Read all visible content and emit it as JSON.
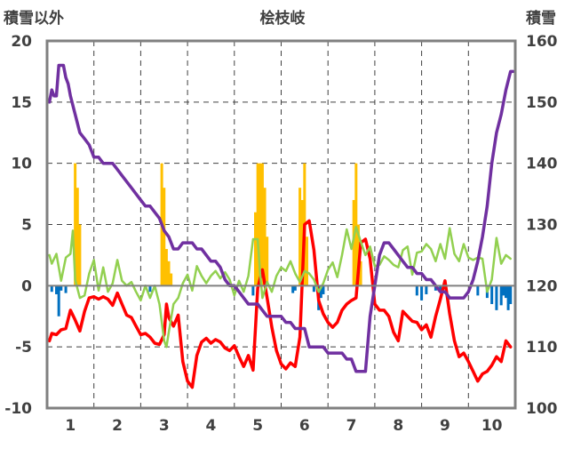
{
  "chart_data": {
    "type": "line",
    "title": "桧枝岐",
    "y_left_label": "積雪以外",
    "y_right_label": "積雪",
    "y_left_range": [
      -10,
      20
    ],
    "y_right_range": [
      100,
      160
    ],
    "y_left_ticks": [
      -10,
      -5,
      0,
      5,
      10,
      15,
      20
    ],
    "y_right_ticks": [
      100,
      110,
      120,
      130,
      140,
      150,
      160
    ],
    "x_range": [
      0.5,
      10.5
    ],
    "x_ticks": [
      1,
      2,
      3,
      4,
      5,
      6,
      7,
      8,
      9,
      10
    ],
    "grid": true,
    "colors": {
      "temperature": "#ff0000",
      "wind": "#92d050",
      "snow_depth": "#7030a0",
      "precip_positive": "#ffc000",
      "precip_negative": "#0070c0",
      "axes": "#808080",
      "grid": "#404040"
    },
    "series": [
      {
        "kind": "line",
        "axis": "left",
        "color_key": "temperature",
        "x": [
          0.55,
          0.6,
          0.7,
          0.8,
          0.9,
          1.0,
          1.1,
          1.2,
          1.3,
          1.4,
          1.5,
          1.6,
          1.7,
          1.8,
          1.9,
          2.0,
          2.1,
          2.2,
          2.3,
          2.4,
          2.5,
          2.6,
          2.7,
          2.8,
          2.9,
          3.0,
          3.05,
          3.1,
          3.2,
          3.3,
          3.4,
          3.5,
          3.6,
          3.7,
          3.8,
          3.9,
          4.0,
          4.1,
          4.2,
          4.3,
          4.4,
          4.5,
          4.6,
          4.7,
          4.8,
          4.9,
          5.0,
          5.1,
          5.2,
          5.3,
          5.4,
          5.5,
          5.6,
          5.7,
          5.8,
          5.9,
          6.0,
          6.1,
          6.2,
          6.3,
          6.4,
          6.5,
          6.6,
          6.7,
          6.8,
          6.9,
          7.0,
          7.1,
          7.2,
          7.3,
          7.4,
          7.5,
          7.6,
          7.7,
          7.8,
          7.9,
          8.0,
          8.1,
          8.2,
          8.3,
          8.4,
          8.5,
          8.6,
          8.7,
          8.8,
          8.9,
          9.0,
          9.1,
          9.2,
          9.3,
          9.4,
          9.5,
          9.6,
          9.7,
          9.8,
          9.9,
          10.0,
          10.1,
          10.2,
          10.3,
          10.4
        ],
        "y": [
          -4.5,
          -3.9,
          -4.0,
          -3.6,
          -3.5,
          -2.0,
          -2.8,
          -3.7,
          -2.1,
          -1.0,
          -0.9,
          -1.1,
          -0.9,
          -1.1,
          -1.6,
          -0.6,
          -1.5,
          -2.4,
          -2.6,
          -3.3,
          -4.0,
          -3.9,
          -4.2,
          -4.7,
          -4.8,
          -4.0,
          -1.5,
          -2.6,
          -3.3,
          -2.4,
          -6.2,
          -7.8,
          -8.3,
          -5.7,
          -4.6,
          -4.3,
          -4.7,
          -4.4,
          -4.6,
          -5.1,
          -5.3,
          -4.9,
          -5.8,
          -6.6,
          -5.7,
          -6.9,
          -0.2,
          1.3,
          -1.0,
          -3.4,
          -5.3,
          -6.4,
          -6.8,
          -6.3,
          -6.6,
          -4.2,
          5.0,
          5.3,
          2.9,
          -1.2,
          -2.3,
          -3.0,
          -3.4,
          -3.0,
          -2.0,
          -1.5,
          -1.2,
          -1.0,
          3.5,
          3.8,
          2.2,
          -1.5,
          -2.0,
          -2.0,
          -2.5,
          -3.8,
          -4.5,
          -2.1,
          -2.5,
          -2.9,
          -3.0,
          -3.6,
          -3.2,
          -4.2,
          -2.5,
          -1.1,
          0.4,
          -2.3,
          -4.5,
          -5.8,
          -5.5,
          -6.2,
          -7.0,
          -7.8,
          -7.2,
          -7.0,
          -6.5,
          -5.8,
          -6.2,
          -4.5,
          -5.0
        ]
      },
      {
        "kind": "line",
        "axis": "left",
        "color_key": "wind",
        "x": [
          0.55,
          0.6,
          0.7,
          0.8,
          0.9,
          1.0,
          1.05,
          1.1,
          1.2,
          1.3,
          1.4,
          1.5,
          1.6,
          1.7,
          1.8,
          1.9,
          2.0,
          2.1,
          2.2,
          2.3,
          2.4,
          2.5,
          2.6,
          2.7,
          2.8,
          2.9,
          3.0,
          3.05,
          3.1,
          3.2,
          3.3,
          3.4,
          3.5,
          3.6,
          3.7,
          3.8,
          3.9,
          4.0,
          4.1,
          4.2,
          4.3,
          4.4,
          4.5,
          4.6,
          4.7,
          4.8,
          4.9,
          5.0,
          5.05,
          5.1,
          5.2,
          5.3,
          5.4,
          5.5,
          5.6,
          5.7,
          5.8,
          5.9,
          6.0,
          6.1,
          6.2,
          6.3,
          6.4,
          6.5,
          6.6,
          6.7,
          6.8,
          6.9,
          7.0,
          7.1,
          7.2,
          7.3,
          7.4,
          7.5,
          7.6,
          7.7,
          7.8,
          7.9,
          8.0,
          8.1,
          8.2,
          8.3,
          8.4,
          8.5,
          8.6,
          8.7,
          8.8,
          8.9,
          9.0,
          9.1,
          9.2,
          9.3,
          9.4,
          9.5,
          9.6,
          9.7,
          9.8,
          9.9,
          10.0,
          10.1,
          10.2,
          10.3,
          10.4
        ],
        "y": [
          2.5,
          1.8,
          2.6,
          0.4,
          2.3,
          2.6,
          4.5,
          0.5,
          -1.0,
          -0.8,
          1.0,
          2.1,
          -0.4,
          1.5,
          -0.5,
          0.2,
          2.1,
          0.4,
          0.0,
          0.3,
          -0.5,
          -1.2,
          0.0,
          -1.0,
          0.0,
          -1.5,
          -4.5,
          -5.0,
          -3.8,
          -1.5,
          -1.0,
          0.2,
          0.9,
          -0.4,
          1.6,
          0.8,
          0.2,
          0.8,
          1.2,
          0.6,
          1.1,
          0.5,
          -0.8,
          0.4,
          -0.5,
          0.8,
          3.8,
          3.8,
          1.0,
          -1.0,
          0.3,
          -0.5,
          0.8,
          1.5,
          1.2,
          2.0,
          1.0,
          0.3,
          1.2,
          1.0,
          0.5,
          -0.5,
          0.2,
          1.3,
          1.9,
          0.7,
          2.5,
          4.6,
          3.0,
          4.8,
          3.6,
          2.5,
          3.2,
          1.6,
          1.7,
          2.4,
          2.1,
          1.7,
          1.5,
          2.9,
          3.2,
          0.9,
          2.7,
          2.8,
          3.4,
          3.0,
          2.0,
          3.4,
          2.2,
          4.7,
          2.6,
          2.0,
          3.4,
          2.3,
          2.1,
          2.3,
          2.2,
          -0.5,
          0.5,
          3.9,
          1.8,
          2.5,
          2.2
        ]
      },
      {
        "kind": "line",
        "axis": "right",
        "color_key": "snow_depth",
        "x": [
          0.55,
          0.6,
          0.65,
          0.7,
          0.75,
          0.8,
          0.85,
          0.9,
          0.95,
          1.0,
          1.1,
          1.2,
          1.3,
          1.4,
          1.5,
          1.6,
          1.7,
          1.8,
          1.9,
          2.0,
          2.1,
          2.2,
          2.3,
          2.4,
          2.5,
          2.6,
          2.7,
          2.8,
          2.9,
          3.0,
          3.1,
          3.2,
          3.3,
          3.4,
          3.5,
          3.6,
          3.7,
          3.8,
          3.9,
          4.0,
          4.1,
          4.2,
          4.3,
          4.4,
          4.5,
          4.6,
          4.7,
          4.8,
          4.9,
          5.0,
          5.1,
          5.2,
          5.3,
          5.4,
          5.5,
          5.6,
          5.7,
          5.8,
          5.9,
          6.0,
          6.1,
          6.2,
          6.3,
          6.4,
          6.5,
          6.6,
          6.7,
          6.8,
          6.9,
          7.0,
          7.1,
          7.2,
          7.3,
          7.4,
          7.5,
          7.6,
          7.7,
          7.8,
          7.9,
          8.0,
          8.1,
          8.2,
          8.3,
          8.4,
          8.5,
          8.6,
          8.7,
          8.8,
          8.9,
          9.0,
          9.1,
          9.2,
          9.3,
          9.4,
          9.5,
          9.6,
          9.7,
          9.8,
          9.9,
          10.0,
          10.1,
          10.2,
          10.3,
          10.4,
          10.45
        ],
        "y": [
          150,
          152,
          151,
          151,
          156,
          156,
          156,
          154,
          153,
          151,
          148,
          145,
          144,
          143,
          141,
          141,
          140,
          140,
          140,
          139,
          138,
          137,
          136,
          135,
          134,
          133,
          133,
          132,
          131,
          129,
          128,
          126,
          126,
          127,
          127,
          127,
          126,
          126,
          125,
          124,
          124,
          123,
          121,
          120,
          120,
          119,
          118,
          117,
          117,
          117,
          116,
          115,
          115,
          115,
          115,
          114,
          114,
          113,
          113,
          113,
          110,
          110,
          110,
          110,
          109,
          109,
          109,
          109,
          108,
          108,
          106,
          106,
          106,
          115,
          120,
          125,
          127,
          127,
          126,
          125,
          124,
          123,
          123,
          122,
          122,
          121,
          121,
          120,
          119,
          119,
          118,
          118,
          118,
          118,
          119,
          121,
          124,
          128,
          133,
          140,
          145,
          148,
          152,
          155,
          155
        ]
      },
      {
        "kind": "bar",
        "axis": "left",
        "x": [
          1.1,
          1.15,
          1.2,
          2.95,
          3.0,
          3.05,
          3.1,
          3.15,
          4.95,
          5.0,
          5.05,
          5.1,
          5.15,
          5.2,
          5.9,
          5.95,
          6.0,
          6.05,
          7.05,
          7.1,
          7.15,
          7.2,
          0.6,
          0.7,
          0.75,
          0.8,
          0.9,
          2.7,
          4.9,
          5.75,
          5.8,
          6.2,
          6.3,
          6.35,
          6.4,
          8.4,
          8.5,
          8.6,
          8.8,
          8.9,
          9.7,
          9.9,
          10.0,
          10.1,
          10.2,
          10.25,
          10.3,
          10.35,
          10.4
        ],
        "y": [
          10,
          8,
          5,
          10,
          8,
          3,
          2,
          1,
          6,
          10,
          10,
          10,
          8,
          4,
          8,
          7,
          10,
          4,
          7,
          10,
          5,
          2,
          -0.5,
          -0.7,
          -2.5,
          -0.4,
          -0.6,
          -0.5,
          -0.8,
          -0.6,
          -0.4,
          -0.5,
          -2.0,
          -1.0,
          -0.7,
          -0.8,
          -1.2,
          -0.7,
          -0.4,
          -0.5,
          -0.8,
          -1.0,
          -1.5,
          -2.0,
          -1.6,
          -0.8,
          -1.0,
          -2.0,
          -1.5
        ]
      }
    ]
  }
}
